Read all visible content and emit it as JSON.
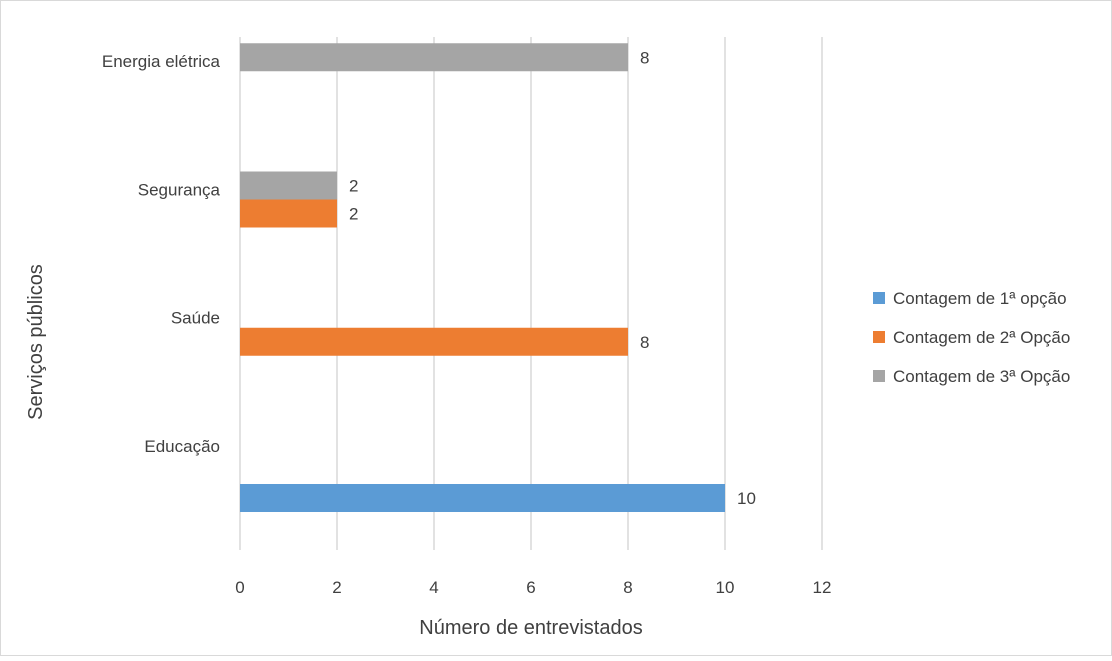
{
  "colors": {
    "series1": "#5b9bd5",
    "series2": "#ed7d31",
    "series3": "#a5a5a5",
    "grid": "#d9d9d9",
    "text": "#404040"
  },
  "legend": {
    "position": "right"
  },
  "chart_data": {
    "type": "bar",
    "orientation": "horizontal",
    "title": "",
    "xlabel": "Número de entrevistados",
    "ylabel": "Serviços públicos",
    "xlim": [
      0,
      12
    ],
    "xticks": [
      0,
      2,
      4,
      6,
      8,
      10,
      12
    ],
    "grid": true,
    "categories": [
      "Educação",
      "Saúde",
      "Segurança",
      "Energia elétrica"
    ],
    "series": [
      {
        "name": "Contagem de 1ª opção",
        "color": "#5b9bd5",
        "values": [
          10,
          null,
          null,
          null
        ]
      },
      {
        "name": "Contagem de 2ª Opção",
        "color": "#ed7d31",
        "values": [
          null,
          8,
          2,
          null
        ]
      },
      {
        "name": "Contagem de 3ª Opção",
        "color": "#a5a5a5",
        "values": [
          null,
          null,
          2,
          8
        ]
      }
    ]
  }
}
